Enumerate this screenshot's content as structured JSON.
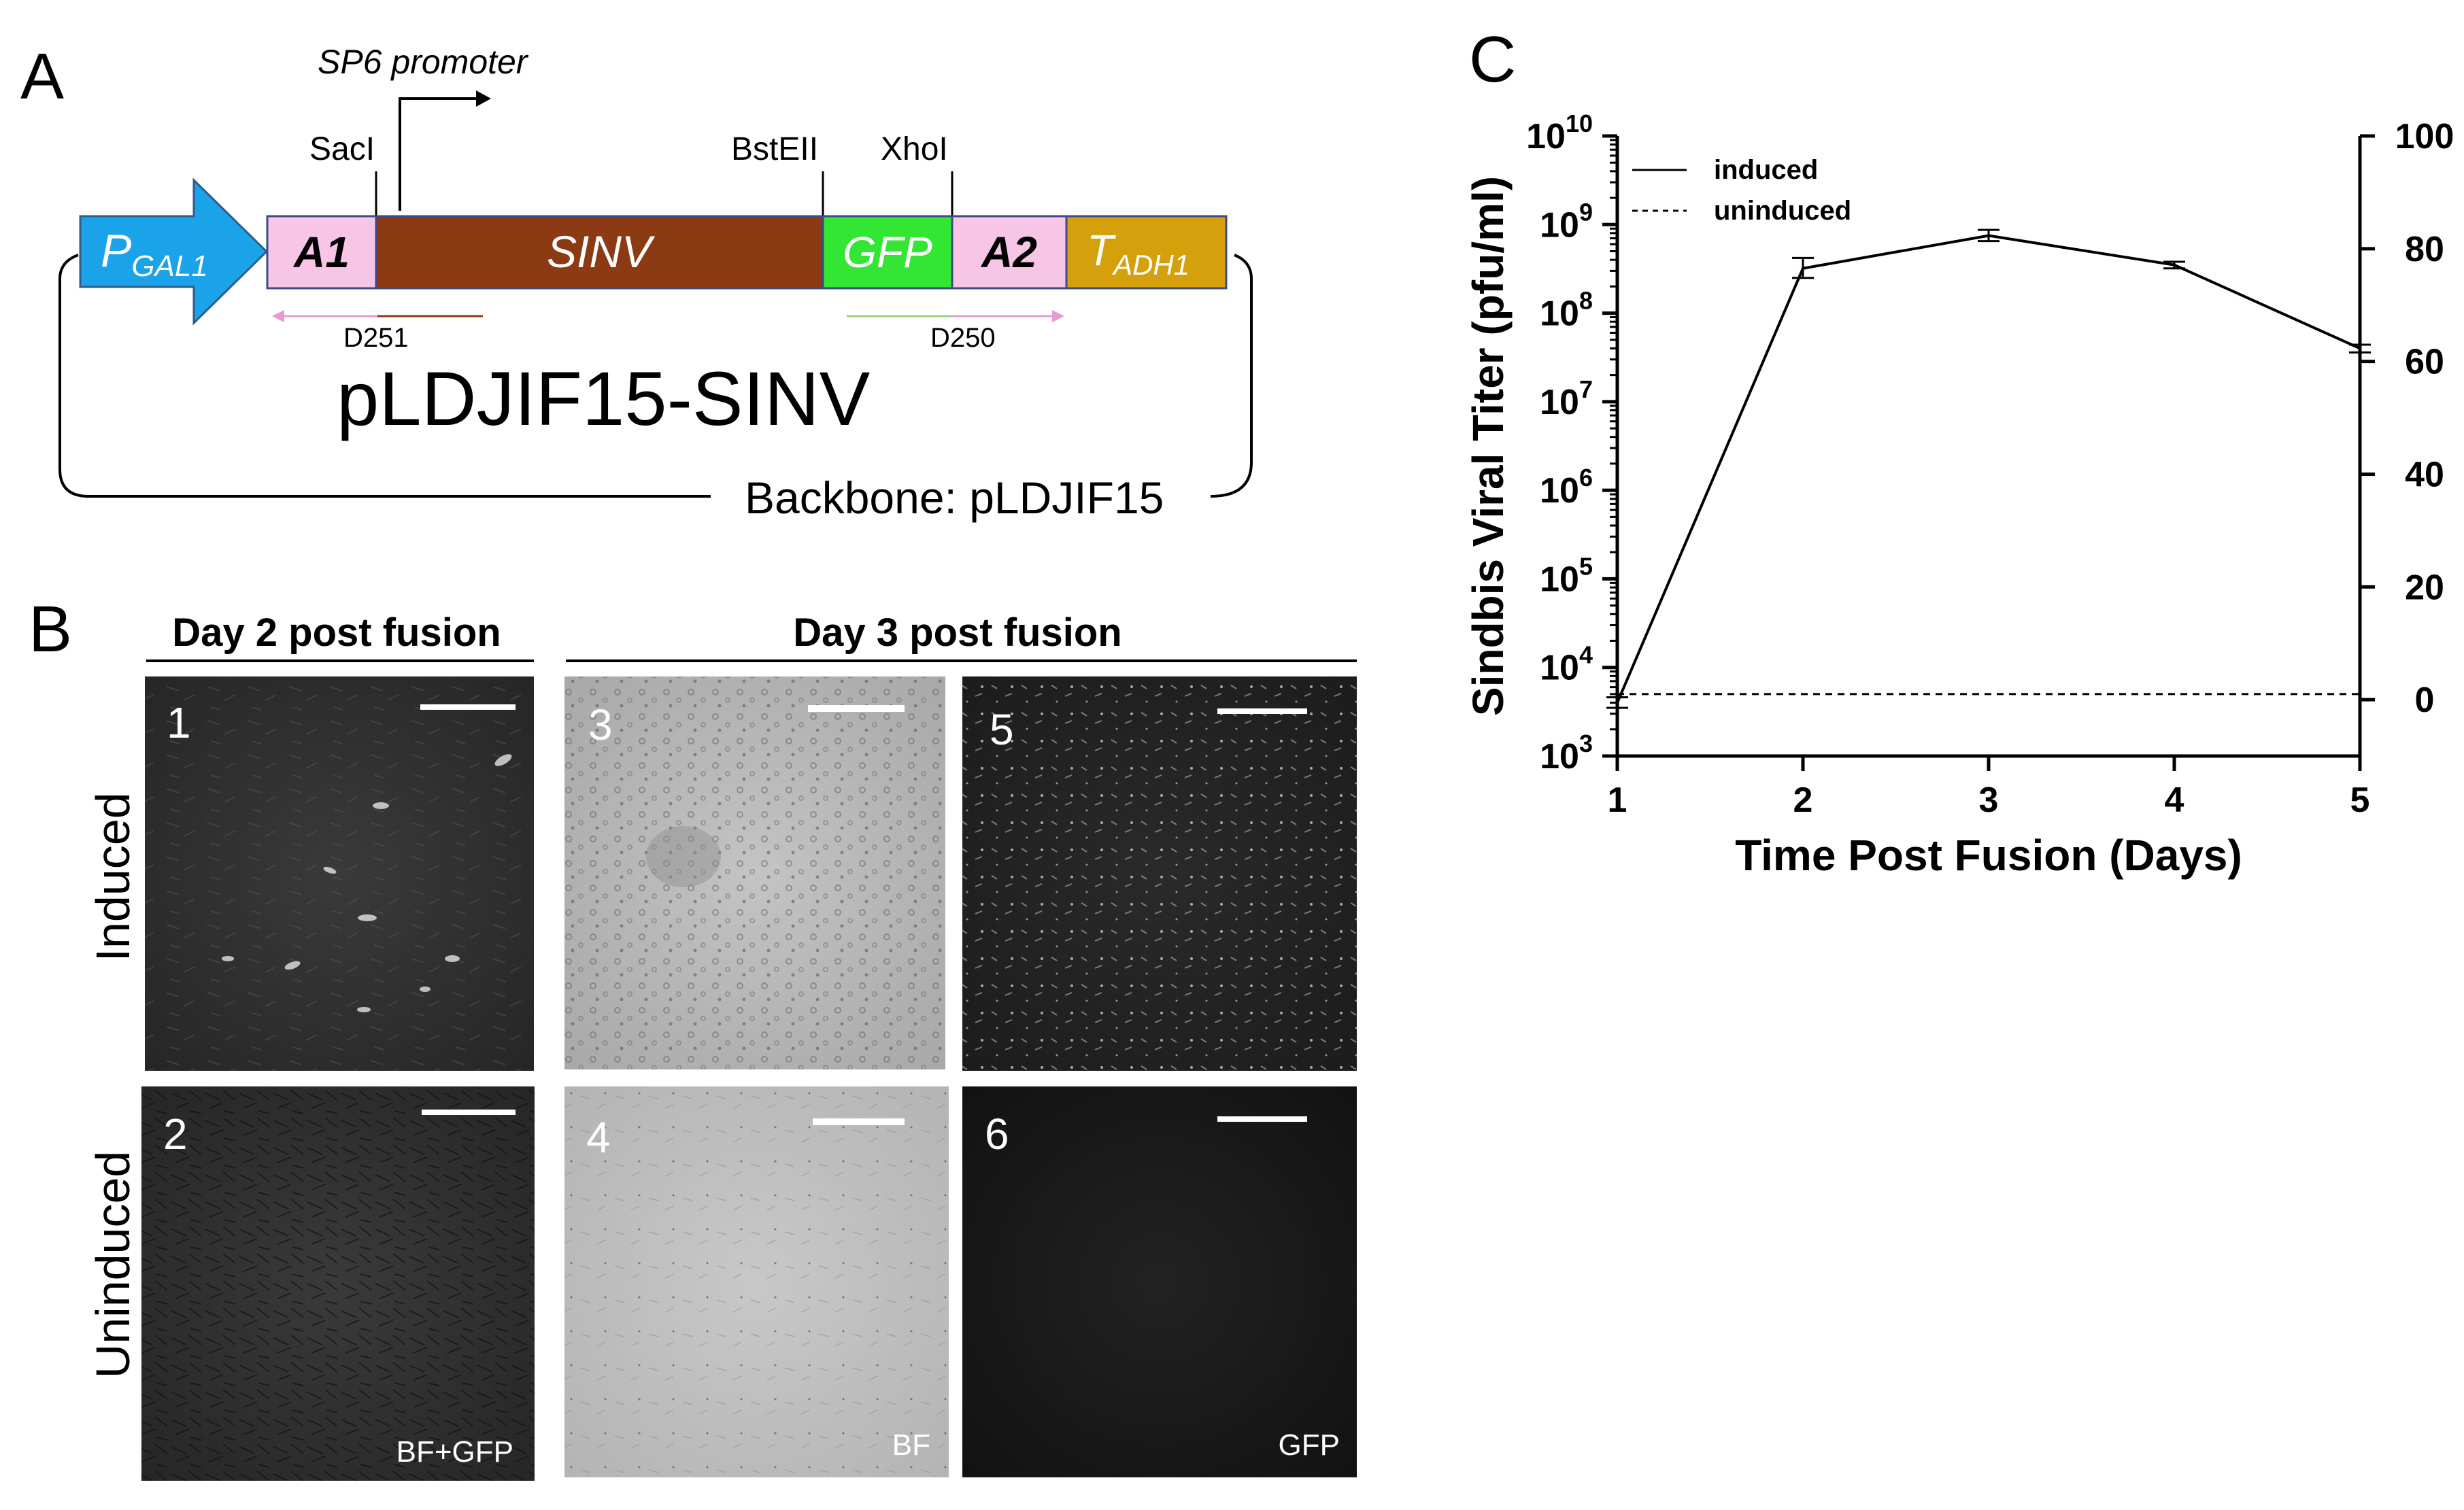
{
  "panelA": {
    "letter": "A",
    "promoter_label": "SP6 promoter",
    "sites": [
      "SacI",
      "BstEII",
      "XhoI"
    ],
    "segments": {
      "pgal1_main": "P",
      "pgal1_sub": "GAL1",
      "a1": "A1",
      "sinv": "SINV",
      "gfp": "GFP",
      "a2": "A2",
      "tadh1_main": "T",
      "tadh1_sub": "ADH1"
    },
    "primers": [
      "D251",
      "D250"
    ],
    "plasmid_name": "pLDJIF15-SINV",
    "backbone": "Backbone: pLDJIF15",
    "colors": {
      "pgal1": "#1aa3e8",
      "a1": "#f7c5e6",
      "sinv": "#8b3a14",
      "gfp": "#33e633",
      "a2": "#f7c5e6",
      "tadh1": "#d4a10c",
      "primer_pink": "#e89ad0",
      "primer_brown": "#8b3a14",
      "primer_green": "#9ad27a"
    }
  },
  "panelB": {
    "letter": "B",
    "header_day2": "Day 2 post fusion",
    "header_day3": "Day 3 post fusion",
    "row_induced": "Induced",
    "row_uninduced": "Uninduced",
    "images": [
      {
        "num": "1",
        "caption": ""
      },
      {
        "num": "2",
        "caption": "BF+GFP"
      },
      {
        "num": "3",
        "caption": ""
      },
      {
        "num": "4",
        "caption": "BF"
      },
      {
        "num": "5",
        "caption": ""
      },
      {
        "num": "6",
        "caption": "GFP"
      }
    ]
  },
  "panelC": {
    "letter": "C",
    "chart_data": {
      "type": "line",
      "xlabel": "Time Post Fusion (Days)",
      "ylabel": "Sindbis Viral Titer (pfu/ml)",
      "x": [
        1,
        2,
        3,
        4,
        5
      ],
      "xlim": [
        1,
        5
      ],
      "xticks": [
        "1",
        "2",
        "3",
        "4",
        "5"
      ],
      "y_scale": "log",
      "ylim": [
        1000,
        10000000000
      ],
      "yticks_base": "10",
      "yticks_exp": [
        "3",
        "4",
        "5",
        "6",
        "7",
        "8",
        "9",
        "10"
      ],
      "y2lim": [
        -10,
        100
      ],
      "y2ticks": [
        "0",
        "20",
        "40",
        "60",
        "80",
        "100"
      ],
      "series": [
        {
          "name": "induced",
          "style": "solid",
          "values": [
            4000,
            320000000,
            750000000,
            350000000,
            40000000
          ],
          "err_low": [
            3500,
            250000000,
            650000000,
            320000000,
            36000000
          ],
          "err_high": [
            4600,
            420000000,
            870000000,
            380000000,
            44000000
          ]
        },
        {
          "name": "uninduced",
          "style": "dashed",
          "values": [
            5000,
            5000,
            5000,
            5000,
            5000
          ]
        }
      ],
      "legend_position": "top-left"
    }
  }
}
